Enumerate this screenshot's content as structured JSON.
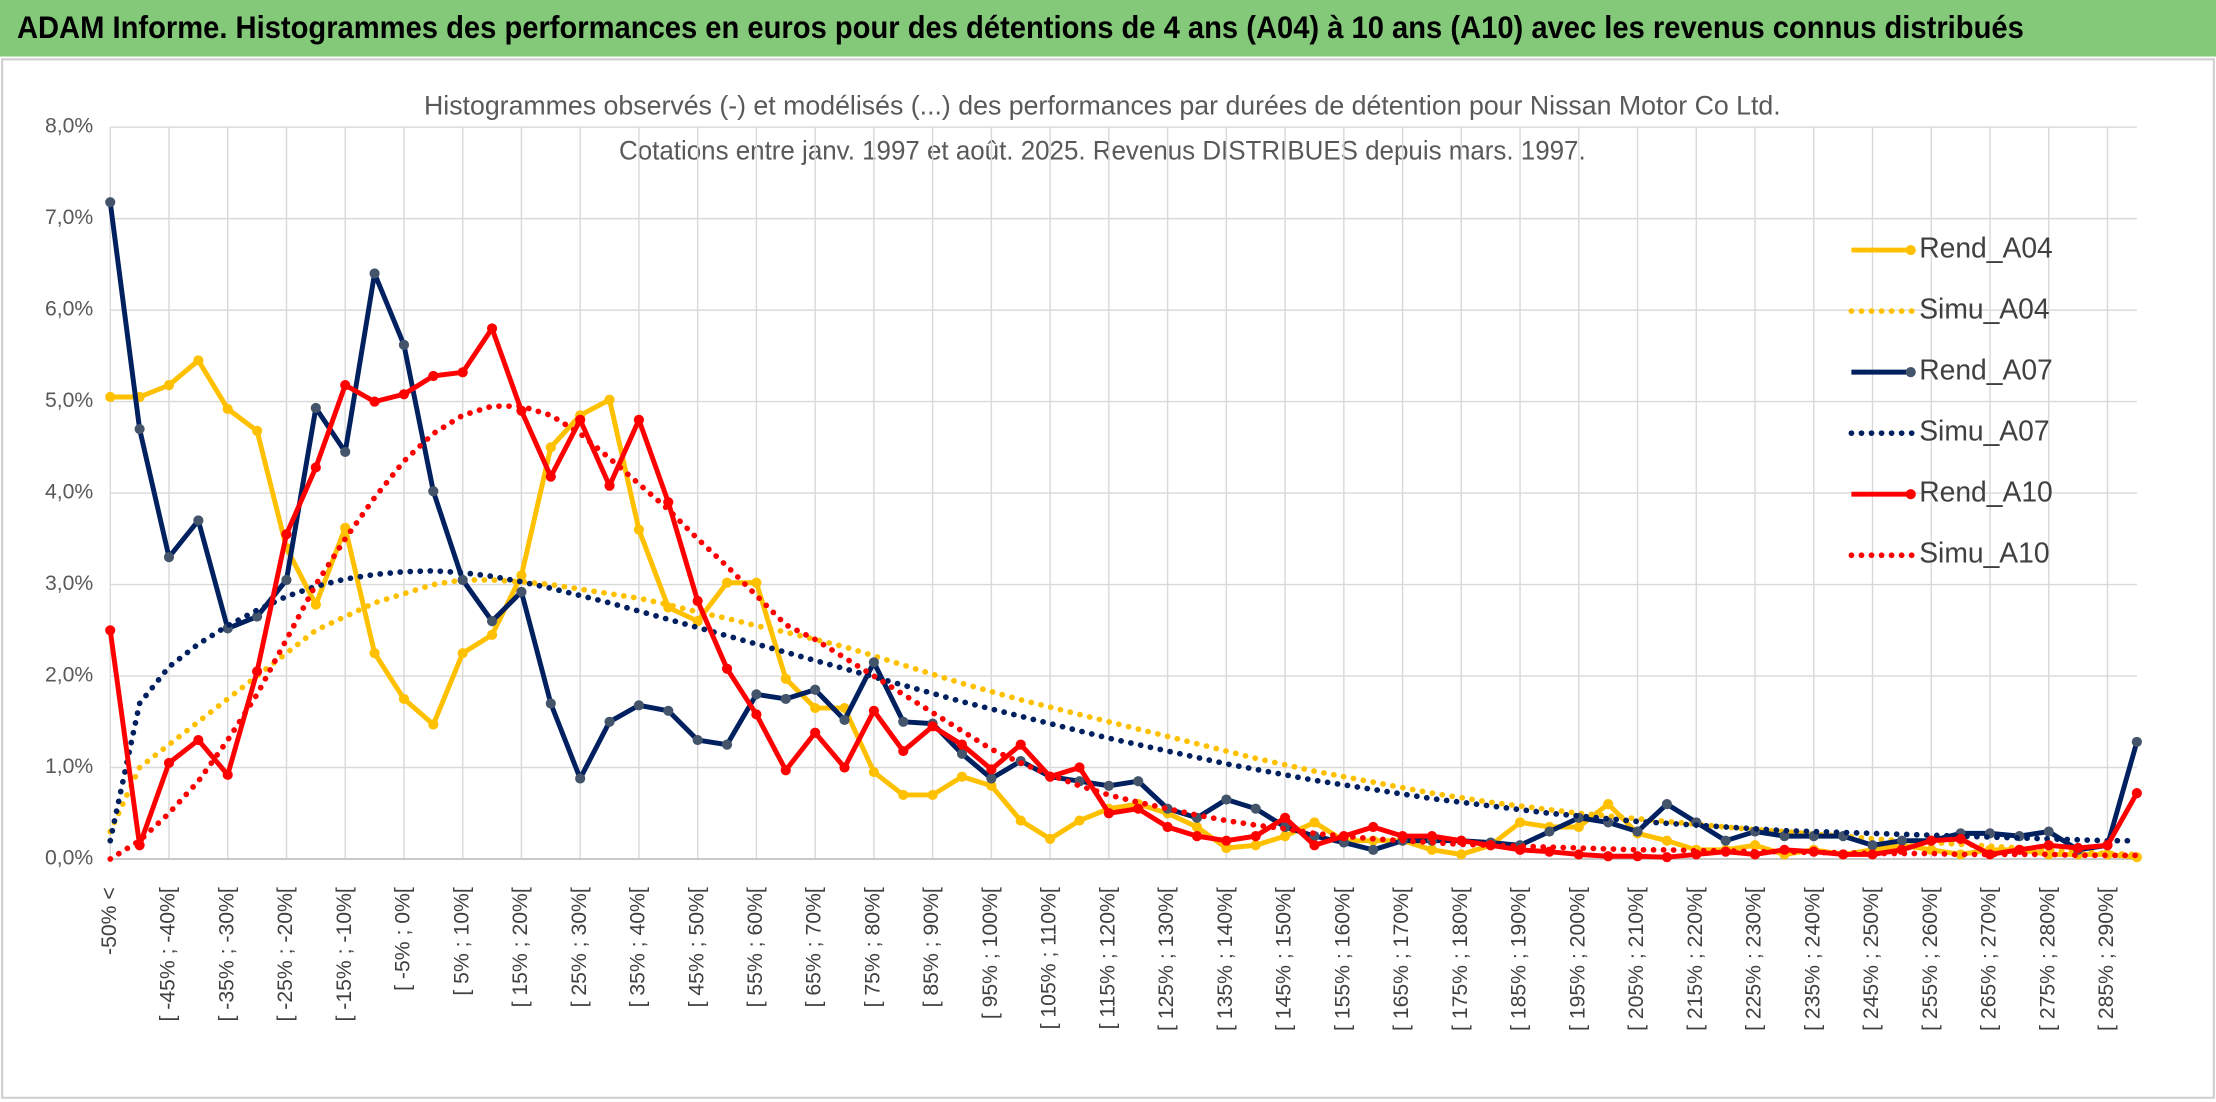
{
  "header": {
    "title": "ADAM Informe. Histogrammes des performances en euros pour des détentions de 4 ans (A04) à 10 ans (A10) avec les revenus connus distribués"
  },
  "chart_data": {
    "type": "line",
    "title": "Histogrammes observés (-) et modélisés (...) des performances par durées de détention pour Nissan Motor Co Ltd.",
    "subtitle": "Cotations entre janv. 1997 et août. 2025. Revenus DISTRIBUES depuis mars. 1997.",
    "categories": [
      "-50% <",
      null,
      "[ -45% ; -40%[",
      null,
      "[ -35% ; -30%[",
      null,
      "[ -25% ; -20%[",
      null,
      "[ -15% ; -10%[",
      null,
      "[ -5% ; 0%[",
      null,
      "[ 5% ; 10%[",
      null,
      "[ 15% ; 20%[",
      null,
      "[ 25% ; 30%[",
      null,
      "[ 35% ; 40%[",
      null,
      "[ 45% ; 50%[",
      null,
      "[ 55% ; 60%[",
      null,
      "[ 65% ; 70%[",
      null,
      "[ 75% ; 80%[",
      null,
      "[ 85% ; 90%[",
      null,
      "[ 95% ; 100%[",
      null,
      "[ 105% ; 110%[",
      null,
      "[ 115% ; 120%[",
      null,
      "[ 125% ; 130%[",
      null,
      "[ 135% ; 140%[",
      null,
      "[ 145% ; 150%[",
      null,
      "[ 155% ; 160%[",
      null,
      "[ 165% ; 170%[",
      null,
      "[ 175% ; 180%[",
      null,
      "[ 185% ; 190%[",
      null,
      "[ 195% ; 200%[",
      null,
      "[ 205% ; 210%[",
      null,
      "[ 215% ; 220%[",
      null,
      "[ 225% ; 230%[",
      null,
      "[ 235% ; 240%[",
      null,
      "[ 245% ; 250%[",
      null,
      "[ 255% ; 260%[",
      null,
      "[ 265% ; 270%[",
      null,
      "[ 275% ; 280%[",
      null,
      "[ 285% ; 290%[",
      null
    ],
    "ylim": [
      0,
      8
    ],
    "yticks": [
      {
        "value": 0,
        "label": "0,0%"
      },
      {
        "value": 1,
        "label": "1,0%"
      },
      {
        "value": 2,
        "label": "2,0%"
      },
      {
        "value": 3,
        "label": "3,0%"
      },
      {
        "value": 4,
        "label": "4,0%"
      },
      {
        "value": 5,
        "label": "5,0%"
      },
      {
        "value": 6,
        "label": "6,0%"
      },
      {
        "value": 7,
        "label": "7,0%"
      },
      {
        "value": 8,
        "label": "8,0%"
      }
    ],
    "grid": true,
    "legend": "right",
    "series": [
      {
        "name": "Rend_A04",
        "color": "#ffc000",
        "dash": "solid",
        "markers": true,
        "values": [
          5.05,
          5.05,
          5.18,
          5.45,
          4.92,
          4.68,
          3.4,
          2.78,
          3.62,
          2.25,
          1.75,
          1.47,
          2.25,
          2.45,
          3.1,
          4.5,
          4.85,
          5.02,
          3.6,
          2.75,
          2.6,
          3.02,
          3.02,
          1.97,
          1.65,
          1.65,
          0.95,
          0.7,
          0.7,
          0.9,
          0.8,
          0.42,
          0.22,
          0.42,
          0.55,
          0.6,
          0.5,
          0.35,
          0.12,
          0.15,
          0.25,
          0.4,
          0.2,
          0.2,
          0.2,
          0.1,
          0.05,
          0.15,
          0.4,
          0.35,
          0.35,
          0.6,
          0.28,
          0.2,
          0.1,
          0.1,
          0.15,
          0.05,
          0.1,
          0.05,
          0.1,
          0.15,
          0.1,
          0.05,
          0.1,
          0.1,
          0.05,
          0.05,
          0.05,
          0.02
        ]
      },
      {
        "name": "Simu_A04",
        "color": "#ffc000",
        "dash": "dotted",
        "markers": false,
        "values": [
          0.3,
          1.0,
          1.25,
          1.5,
          1.75,
          2.0,
          2.25,
          2.5,
          2.65,
          2.8,
          2.9,
          3.0,
          3.05,
          3.05,
          3.03,
          3.0,
          2.95,
          2.9,
          2.85,
          2.78,
          2.7,
          2.63,
          2.55,
          2.48,
          2.4,
          2.32,
          2.22,
          2.12,
          2.02,
          1.92,
          1.83,
          1.74,
          1.66,
          1.58,
          1.5,
          1.42,
          1.34,
          1.26,
          1.18,
          1.1,
          1.03,
          0.96,
          0.9,
          0.84,
          0.78,
          0.72,
          0.67,
          0.62,
          0.58,
          0.54,
          0.5,
          0.47,
          0.44,
          0.41,
          0.38,
          0.35,
          0.32,
          0.3,
          0.27,
          0.25,
          0.22,
          0.2,
          0.18,
          0.16,
          0.14,
          0.12,
          0.1,
          0.08,
          0.06,
          0.05
        ]
      },
      {
        "name": "Rend_A07",
        "color": "#002060",
        "dash": "solid",
        "markers": true,
        "values": [
          7.18,
          4.7,
          3.3,
          3.7,
          2.52,
          2.65,
          3.05,
          4.93,
          4.45,
          6.4,
          5.62,
          4.02,
          3.05,
          2.6,
          2.92,
          1.7,
          0.88,
          1.5,
          1.68,
          1.62,
          1.3,
          1.25,
          1.8,
          1.75,
          1.85,
          1.52,
          2.15,
          1.5,
          1.48,
          1.15,
          0.88,
          1.07,
          0.9,
          0.85,
          0.8,
          0.85,
          0.55,
          0.45,
          0.65,
          0.55,
          0.35,
          0.25,
          0.18,
          0.1,
          0.2,
          0.2,
          0.2,
          0.18,
          0.15,
          0.3,
          0.45,
          0.4,
          0.3,
          0.6,
          0.4,
          0.2,
          0.3,
          0.25,
          0.25,
          0.25,
          0.15,
          0.2,
          0.2,
          0.28,
          0.28,
          0.25,
          0.3,
          0.1,
          0.15,
          1.28
        ]
      },
      {
        "name": "Simu_A07",
        "color": "#002060",
        "dash": "dotted",
        "markers": false,
        "values": [
          0.2,
          1.7,
          2.1,
          2.35,
          2.55,
          2.72,
          2.87,
          2.98,
          3.06,
          3.11,
          3.14,
          3.15,
          3.13,
          3.09,
          3.03,
          2.96,
          2.88,
          2.8,
          2.71,
          2.62,
          2.53,
          2.44,
          2.35,
          2.26,
          2.17,
          2.08,
          1.99,
          1.9,
          1.81,
          1.72,
          1.64,
          1.56,
          1.48,
          1.4,
          1.32,
          1.25,
          1.18,
          1.11,
          1.04,
          0.98,
          0.92,
          0.86,
          0.81,
          0.76,
          0.71,
          0.66,
          0.62,
          0.58,
          0.54,
          0.5,
          0.47,
          0.44,
          0.41,
          0.39,
          0.37,
          0.35,
          0.33,
          0.31,
          0.3,
          0.29,
          0.28,
          0.27,
          0.26,
          0.25,
          0.24,
          0.23,
          0.22,
          0.21,
          0.2,
          0.2
        ]
      },
      {
        "name": "Rend_A10",
        "color": "#ff0000",
        "dash": "solid",
        "markers": true,
        "values": [
          2.5,
          0.15,
          1.05,
          1.3,
          0.92,
          2.05,
          3.55,
          4.28,
          5.18,
          5.0,
          5.08,
          5.28,
          5.32,
          5.8,
          4.9,
          4.18,
          4.8,
          4.08,
          4.8,
          3.9,
          2.82,
          2.08,
          1.58,
          0.97,
          1.38,
          1.0,
          1.62,
          1.18,
          1.45,
          1.25,
          0.98,
          1.25,
          0.9,
          1.0,
          0.5,
          0.55,
          0.35,
          0.25,
          0.2,
          0.25,
          0.45,
          0.15,
          0.25,
          0.35,
          0.25,
          0.25,
          0.2,
          0.15,
          0.1,
          0.08,
          0.05,
          0.03,
          0.03,
          0.02,
          0.05,
          0.08,
          0.05,
          0.1,
          0.08,
          0.05,
          0.05,
          0.1,
          0.2,
          0.22,
          0.05,
          0.1,
          0.15,
          0.12,
          0.15,
          0.72
        ]
      },
      {
        "name": "Simu_A10",
        "color": "#ff0000",
        "dash": "dotted",
        "markers": false,
        "values": [
          0.0,
          0.2,
          0.5,
          0.85,
          1.3,
          1.8,
          2.4,
          3.0,
          3.5,
          3.95,
          4.35,
          4.65,
          4.85,
          4.95,
          4.95,
          4.85,
          4.65,
          4.38,
          4.1,
          3.82,
          3.5,
          3.2,
          2.88,
          2.56,
          2.4,
          2.2,
          2.0,
          1.8,
          1.6,
          1.4,
          1.2,
          1.05,
          0.92,
          0.8,
          0.7,
          0.62,
          0.55,
          0.48,
          0.42,
          0.37,
          0.33,
          0.28,
          0.25,
          0.22,
          0.2,
          0.18,
          0.16,
          0.15,
          0.14,
          0.13,
          0.12,
          0.11,
          0.1,
          0.1,
          0.09,
          0.09,
          0.08,
          0.08,
          0.07,
          0.07,
          0.06,
          0.06,
          0.06,
          0.05,
          0.05,
          0.05,
          0.05,
          0.04,
          0.04,
          0.04
        ]
      }
    ]
  }
}
